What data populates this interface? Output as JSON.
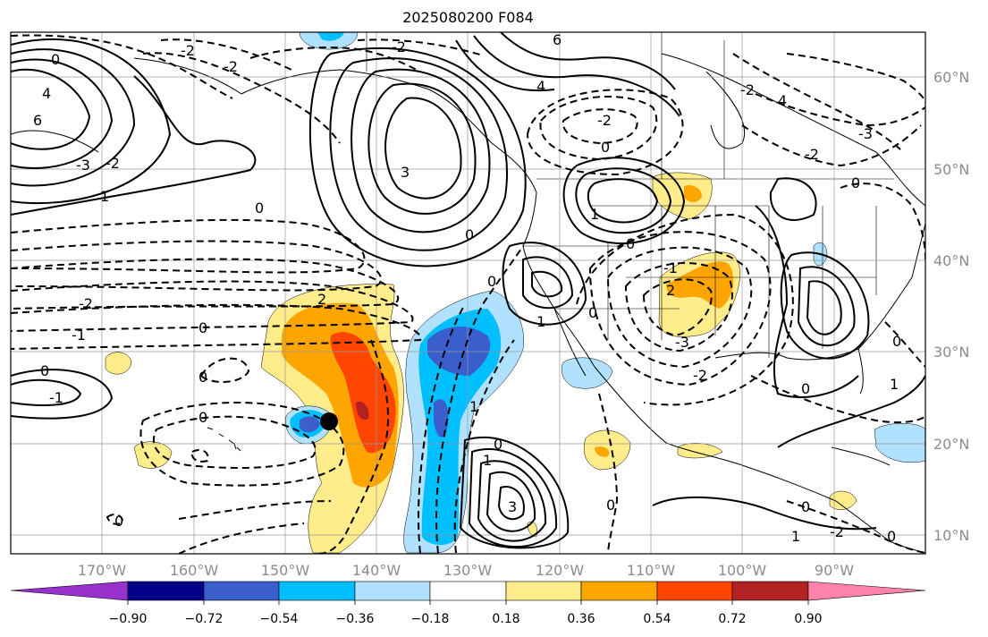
{
  "title": "2025080200 F084",
  "map": {
    "lon_ticks": [
      "170°W",
      "160°W",
      "150°W",
      "140°W",
      "130°W",
      "120°W",
      "110°W",
      "100°W",
      "90°W"
    ],
    "lat_ticks": [
      "60°N",
      "50°N",
      "40°N",
      "30°N",
      "20°N",
      "10°N"
    ],
    "extent": {
      "lon_min": -180,
      "lon_max": -80,
      "lat_min": 8,
      "lat_max": 65
    },
    "marker": {
      "lon": -145,
      "lat": 22.5,
      "color": "#000000"
    },
    "contour_labels": [
      "0",
      "-2",
      "2",
      "4",
      "6",
      "-3",
      "-1",
      "1",
      "3"
    ]
  },
  "colorbar": {
    "tick_labels": [
      "−0.90",
      "−0.72",
      "−0.54",
      "−0.36",
      "−0.18",
      "0.18",
      "0.36",
      "0.54",
      "0.72",
      "0.90"
    ],
    "colors": [
      "#9932cc",
      "#00008b",
      "#3a5fcd",
      "#00bfff",
      "#b0e2ff",
      "#ffffff",
      "#ffec8b",
      "#ffa500",
      "#ff4500",
      "#b22222",
      "#ff82ab"
    ]
  }
}
